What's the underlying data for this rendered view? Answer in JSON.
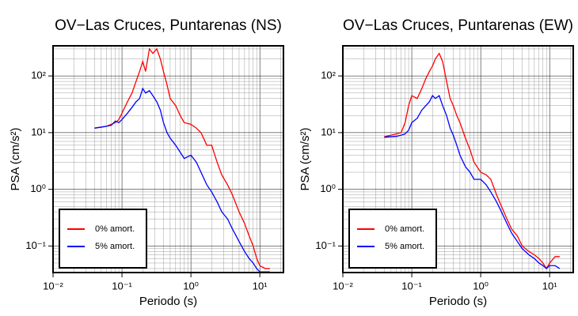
{
  "chart_data": [
    {
      "type": "line",
      "title": "OV−Las Cruces, Puntarenas (NS)",
      "x_label": "Periodo (s)",
      "y_label": "PSA (cm/s²)",
      "log_x": true,
      "log_y": true,
      "grid": true,
      "legend": "lower left",
      "xlim": [
        0.01,
        22
      ],
      "ylim": [
        0.034,
        340
      ],
      "xticks": [
        {
          "value": 0.01,
          "label": "10⁻²"
        },
        {
          "value": 0.1,
          "label": "10⁻¹"
        },
        {
          "value": 1,
          "label": "10⁰"
        },
        {
          "value": 10,
          "label": "10¹"
        }
      ],
      "yticks": [
        {
          "value": 0.1,
          "label": "10⁻¹"
        },
        {
          "value": 1,
          "label": "10⁰"
        },
        {
          "value": 10,
          "label": "10¹"
        },
        {
          "value": 100,
          "label": "10²"
        }
      ],
      "x": [
        0.04,
        0.05,
        0.06,
        0.07,
        0.08,
        0.09,
        0.1,
        0.12,
        0.14,
        0.16,
        0.18,
        0.2,
        0.22,
        0.25,
        0.28,
        0.32,
        0.36,
        0.4,
        0.45,
        0.5,
        0.6,
        0.7,
        0.8,
        1,
        1.2,
        1.4,
        1.7,
        2,
        2.4,
        2.8,
        3.4,
        4,
        5,
        6,
        7,
        8,
        9,
        10,
        12,
        14
      ],
      "series": [
        {
          "name": "0% amort.",
          "color": "#ff0000",
          "values": [
            12,
            12.5,
            13,
            14,
            15,
            17,
            22,
            35,
            50,
            80,
            120,
            180,
            120,
            300,
            250,
            300,
            200,
            120,
            70,
            40,
            30,
            20,
            15,
            14,
            12,
            10,
            6,
            6,
            3,
            1.8,
            1.2,
            0.8,
            0.4,
            0.25,
            0.15,
            0.1,
            0.06,
            0.045,
            0.04,
            0.04
          ]
        },
        {
          "name": "5% amort.",
          "color": "#0000ff",
          "values": [
            12,
            12.5,
            13,
            13.5,
            16,
            15,
            17,
            22,
            28,
            35,
            40,
            60,
            50,
            55,
            45,
            35,
            25,
            15,
            10,
            8,
            6,
            4.5,
            3.5,
            4,
            3,
            2,
            1.2,
            0.9,
            0.6,
            0.4,
            0.3,
            0.2,
            0.12,
            0.08,
            0.06,
            0.05,
            0.04,
            0.035,
            0.035,
            0.035
          ]
        }
      ]
    },
    {
      "type": "line",
      "title": "OV−Las Cruces, Puntarenas (EW)",
      "x_label": "Periodo (s)",
      "y_label": "PSA (cm/s²)",
      "log_x": true,
      "log_y": true,
      "grid": true,
      "legend": "lower left",
      "xlim": [
        0.01,
        22
      ],
      "ylim": [
        0.034,
        340
      ],
      "xticks": [
        {
          "value": 0.01,
          "label": "10⁻²"
        },
        {
          "value": 0.1,
          "label": "10⁻¹"
        },
        {
          "value": 1,
          "label": "10⁰"
        },
        {
          "value": 10,
          "label": "10¹"
        }
      ],
      "yticks": [
        {
          "value": 0.1,
          "label": "10⁻¹"
        },
        {
          "value": 1,
          "label": "10⁰"
        },
        {
          "value": 10,
          "label": "10¹"
        },
        {
          "value": 100,
          "label": "10²"
        }
      ],
      "x": [
        0.04,
        0.05,
        0.06,
        0.07,
        0.08,
        0.09,
        0.1,
        0.12,
        0.14,
        0.16,
        0.18,
        0.2,
        0.22,
        0.25,
        0.28,
        0.32,
        0.36,
        0.4,
        0.45,
        0.5,
        0.6,
        0.7,
        0.8,
        1,
        1.2,
        1.4,
        1.7,
        2,
        2.4,
        2.8,
        3.4,
        4,
        5,
        6,
        7,
        8,
        9,
        10,
        12,
        14
      ],
      "series": [
        {
          "name": "0% amort.",
          "color": "#ff0000",
          "values": [
            8.5,
            9,
            9.5,
            10,
            15,
            30,
            45,
            40,
            60,
            90,
            120,
            150,
            200,
            250,
            180,
            80,
            40,
            30,
            20,
            15,
            8,
            5,
            3,
            2,
            1.8,
            1.5,
            0.8,
            0.5,
            0.3,
            0.2,
            0.15,
            0.1,
            0.08,
            0.07,
            0.06,
            0.05,
            0.04,
            0.05,
            0.065,
            0.065
          ]
        },
        {
          "name": "5% amort.",
          "color": "#0000ff",
          "values": [
            8.3,
            8.5,
            8.6,
            9,
            9.5,
            11,
            15,
            18,
            25,
            30,
            35,
            45,
            40,
            45,
            30,
            20,
            12,
            9,
            6,
            4,
            2.5,
            2,
            1.5,
            1.5,
            1.2,
            0.9,
            0.6,
            0.4,
            0.25,
            0.17,
            0.12,
            0.09,
            0.07,
            0.06,
            0.05,
            0.045,
            0.04,
            0.045,
            0.045,
            0.04
          ]
        }
      ]
    }
  ]
}
